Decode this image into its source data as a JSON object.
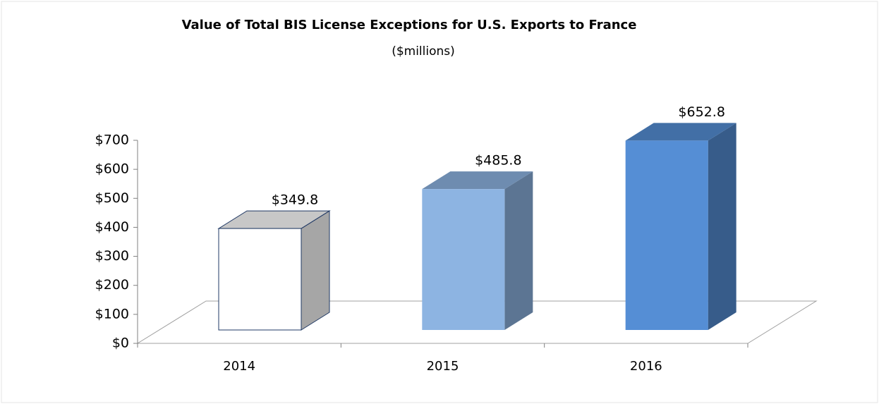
{
  "chart_data": {
    "type": "bar3d",
    "title": "Value of Total BIS License Exceptions for U.S. Exports to France",
    "subtitle": "($millions)",
    "categories": [
      "2014",
      "2015",
      "2016"
    ],
    "values": [
      349.8,
      485.8,
      652.8
    ],
    "value_labels": [
      "$349.8",
      "$485.8",
      "$652.8"
    ],
    "colors": [
      "#ffffff",
      "#8db4e2",
      "#558ed5"
    ],
    "ylim": [
      0,
      700
    ],
    "yticks": [
      {
        "value": 0,
        "label": "$0"
      },
      {
        "value": 100,
        "label": "$100"
      },
      {
        "value": 200,
        "label": "$200"
      },
      {
        "value": 300,
        "label": "$300"
      },
      {
        "value": 400,
        "label": "$400"
      },
      {
        "value": 500,
        "label": "$500"
      },
      {
        "value": 600,
        "label": "$600"
      },
      {
        "value": 700,
        "label": "$700"
      }
    ]
  }
}
